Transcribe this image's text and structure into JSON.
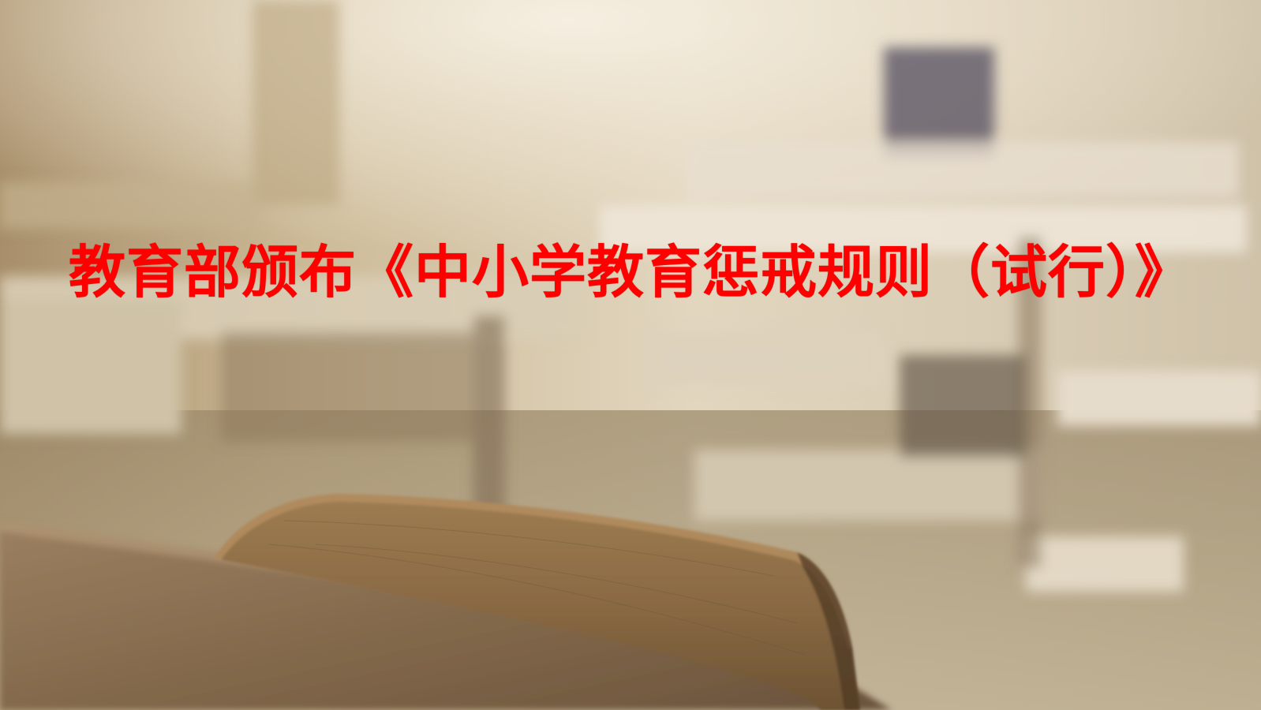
{
  "slide": {
    "title": "教育部颁布《中小学教育惩戒规则（试行）》",
    "title_color": "#ff0000",
    "background_image": "blurred-classroom-wooden-desk-and-chair-photo"
  }
}
